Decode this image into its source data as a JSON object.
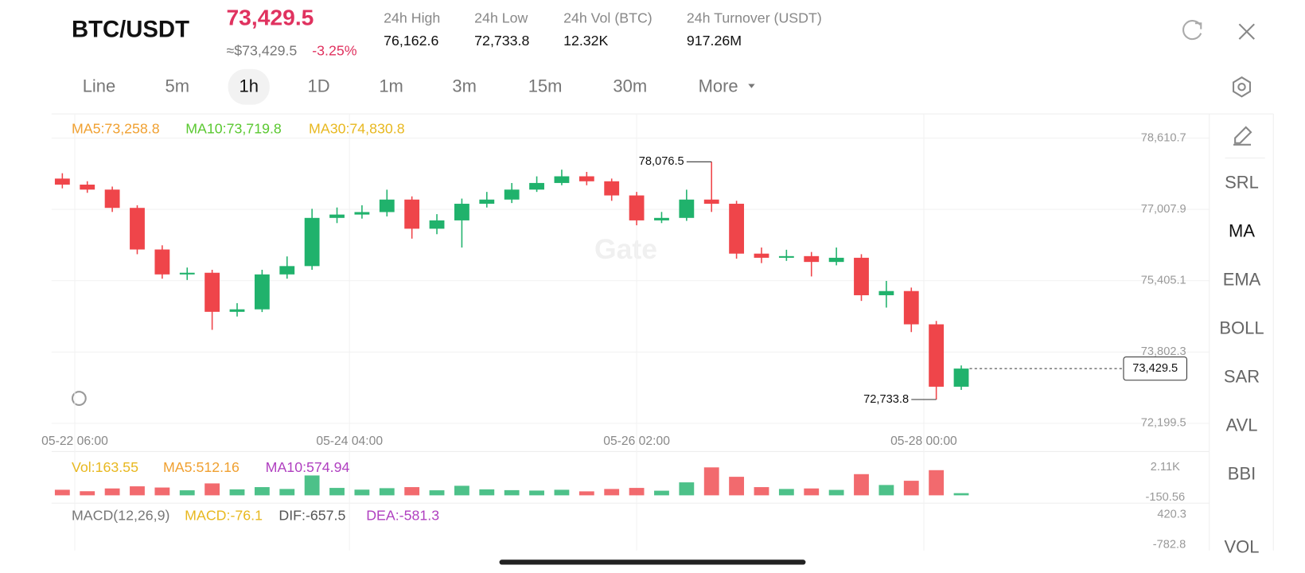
{
  "header": {
    "pair": "BTC/USDT",
    "price": "73,429.5",
    "usd_price": "≈$73,429.5",
    "change": "-3.25%",
    "stats": [
      {
        "label": "24h High",
        "value": "76,162.6"
      },
      {
        "label": "24h Low",
        "value": "72,733.8"
      },
      {
        "label": "24h Vol (BTC)",
        "value": "12.32K"
      },
      {
        "label": "24h Turnover (USDT)",
        "value": "917.26M"
      }
    ]
  },
  "intervals": [
    "Line",
    "5m",
    "1h",
    "1D",
    "1m",
    "3m",
    "15m",
    "30m",
    "More"
  ],
  "active_interval": "1h",
  "tools": [
    "SRL",
    "MA",
    "EMA",
    "BOLL",
    "SAR",
    "AVL",
    "BBI",
    "VOL"
  ],
  "active_tool": "MA",
  "chart_data": {
    "type": "candlestick",
    "indicators": [
      {
        "text": "MA5:73,258.8",
        "color": "#f0a030"
      },
      {
        "text": "MA10:73,719.8",
        "color": "#5ac830"
      },
      {
        "text": "MA30:74,830.8",
        "color": "#e8b820"
      }
    ],
    "up_color": "#20b26c",
    "down_color": "#ef454a",
    "grid": true,
    "ylim": [
      72087.3,
      79096.7
    ],
    "yticks": [
      {
        "value": 72199.5,
        "label": "72,199.5"
      },
      {
        "value": 73802.3,
        "label": "73,802.3"
      },
      {
        "value": 75405.1,
        "label": "75,405.1"
      },
      {
        "value": 77007.9,
        "label": "77,007.9"
      },
      {
        "value": 78610.7,
        "label": "78,610.7"
      }
    ],
    "xlim": [
      -0.43,
      42.8
    ],
    "xticks": [
      {
        "value": 0.5,
        "label": "05-22 06:00"
      },
      {
        "value": 11.5,
        "label": "05-24 04:00"
      },
      {
        "value": 23,
        "label": "05-26 02:00"
      },
      {
        "value": 34.5,
        "label": "05-28 00:00"
      }
    ],
    "candles": [
      [
        77700,
        77820,
        77480,
        77564
      ],
      [
        77564,
        77640,
        77380,
        77452
      ],
      [
        77452,
        77520,
        76950,
        77041
      ],
      [
        77041,
        77100,
        76000,
        76106
      ],
      [
        76106,
        76200,
        75450,
        75546
      ],
      [
        75546,
        75700,
        75420,
        75583
      ],
      [
        75583,
        75650,
        74300,
        74705
      ],
      [
        74705,
        74900,
        74600,
        74761
      ],
      [
        74761,
        75650,
        74700,
        75546
      ],
      [
        75546,
        75950,
        75450,
        75733
      ],
      [
        75733,
        77020,
        75650,
        76816
      ],
      [
        76816,
        77050,
        76700,
        76891
      ],
      [
        76891,
        77100,
        76800,
        76947
      ],
      [
        76947,
        77450,
        76850,
        77228
      ],
      [
        77228,
        77300,
        76350,
        76573
      ],
      [
        76573,
        76900,
        76450,
        76760
      ],
      [
        76760,
        77250,
        76150,
        77134
      ],
      [
        77134,
        77400,
        77050,
        77228
      ],
      [
        77228,
        77600,
        77150,
        77452
      ],
      [
        77452,
        77750,
        77400,
        77601
      ],
      [
        77601,
        77900,
        77550,
        77751
      ],
      [
        77751,
        77850,
        77550,
        77639
      ],
      [
        77639,
        77700,
        77200,
        77321
      ],
      [
        77321,
        77400,
        76650,
        76760
      ],
      [
        76760,
        76950,
        76700,
        76816
      ],
      [
        76816,
        77450,
        76750,
        77228
      ],
      [
        77228,
        78076.5,
        76950,
        77134
      ],
      [
        77134,
        77200,
        75900,
        76013
      ],
      [
        76013,
        76150,
        75800,
        75920
      ],
      [
        75920,
        76100,
        75850,
        75957
      ],
      [
        75957,
        76050,
        75500,
        75826
      ],
      [
        75826,
        76150,
        75750,
        75920
      ],
      [
        75920,
        76000,
        74950,
        75078
      ],
      [
        75078,
        75400,
        74800,
        75172
      ],
      [
        75172,
        75250,
        74250,
        74424
      ],
      [
        74424,
        74500,
        72733.8,
        73022
      ],
      [
        73022,
        73500,
        72950,
        73429.5
      ]
    ],
    "high_label": {
      "value": 78076.5,
      "label": "78,076.5"
    },
    "low_label": {
      "value": 72733.8,
      "label": "72,733.8"
    },
    "last_price": {
      "value": 73429.5,
      "label": "73,429.5"
    },
    "volume": {
      "labels": [
        {
          "text": "Vol:163.55",
          "color": "#e8b820"
        },
        {
          "text": "MA5:512.16",
          "color": "#f0a030"
        },
        {
          "text": "MA10:574.94",
          "color": "#b040c0"
        }
      ],
      "ylim": [
        -150.56,
        2110
      ],
      "yticks": [
        {
          "value": 2110,
          "label": "2.11K"
        },
        {
          "value": -150.56,
          "label": "-150.56"
        }
      ],
      "values": [
        420,
        310,
        520,
        680,
        590,
        380,
        900,
        450,
        620,
        480,
        1500,
        560,
        430,
        540,
        620,
        380,
        720,
        450,
        390,
        360,
        420,
        300,
        480,
        560,
        350,
        980,
        2110,
        1400,
        620,
        480,
        520,
        410,
        1600,
        780,
        1100,
        1900,
        163.55
      ]
    },
    "macd": {
      "labels": [
        {
          "text": "MACD(12,26,9)",
          "color": "#777777"
        },
        {
          "text": "MACD:-76.1",
          "color": "#e8b820"
        },
        {
          "text": "DIF:-657.5",
          "color": "#555555"
        },
        {
          "text": "DEA:-581.3",
          "color": "#b040c0"
        }
      ],
      "axis": [
        "420.3",
        "-782.8"
      ]
    }
  }
}
